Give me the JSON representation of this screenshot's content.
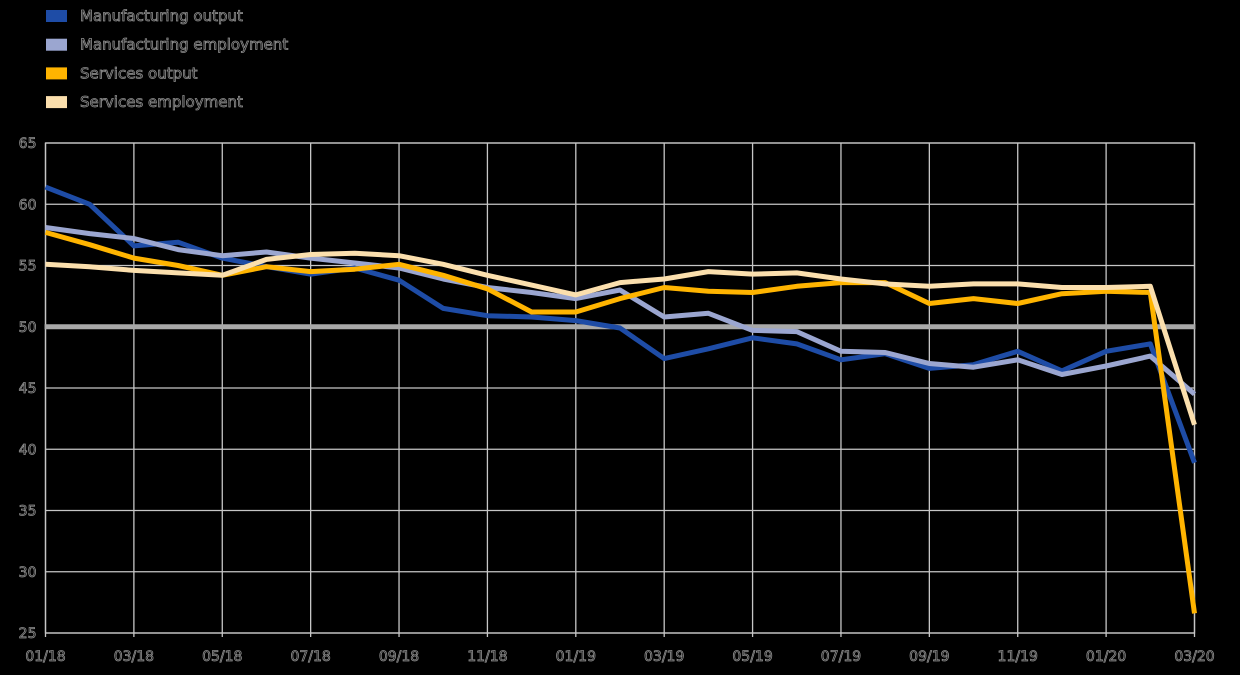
{
  "background_color": "#000000",
  "text_color": "#8f8f8f",
  "grid_color": "#c6c6c6",
  "legend": {
    "position": "top-left",
    "items": [
      {
        "label": "Manufacturing output",
        "color": "#1e4ca6"
      },
      {
        "label": "Manufacturing employment",
        "color": "#9ba6d0"
      },
      {
        "label": "Services output",
        "color": "#ffb400"
      },
      {
        "label": "Services employment",
        "color": "#fbdfad"
      }
    ]
  },
  "chart_data": {
    "type": "line",
    "title": "",
    "xlabel": "",
    "ylabel": "",
    "grid": true,
    "legend_position": "top-left",
    "ylim": [
      25,
      65
    ],
    "yticks": [
      65,
      60,
      55,
      50,
      45,
      40,
      35,
      30,
      25
    ],
    "reference_line": {
      "y": 50,
      "color": "#a9a9a9",
      "width": 5
    },
    "x": [
      "01/18",
      "02/18",
      "03/18",
      "04/18",
      "05/18",
      "06/18",
      "07/18",
      "08/18",
      "09/18",
      "10/18",
      "11/18",
      "12/18",
      "01/19",
      "02/19",
      "03/19",
      "04/19",
      "05/19",
      "06/19",
      "07/19",
      "08/19",
      "09/19",
      "10/19",
      "11/19",
      "12/19",
      "01/20",
      "02/20",
      "03/20"
    ],
    "x_tick_labels": [
      "01/18",
      "03/18",
      "05/18",
      "07/18",
      "09/18",
      "11/18",
      "01/19",
      "03/19",
      "05/19",
      "07/19",
      "09/19",
      "11/19",
      "01/20",
      "03/20"
    ],
    "series": [
      {
        "name": "Manufacturing output",
        "color": "#1e4ca6",
        "values": [
          61.4,
          60.0,
          56.6,
          56.9,
          55.6,
          54.9,
          54.3,
          54.8,
          53.8,
          51.5,
          50.9,
          50.8,
          50.5,
          49.9,
          47.4,
          48.2,
          49.1,
          48.6,
          47.3,
          47.8,
          46.6,
          46.9,
          48.0,
          46.4,
          48.0,
          48.6,
          38.9
        ]
      },
      {
        "name": "Manufacturing employment",
        "color": "#9ba6d0",
        "values": [
          58.1,
          57.6,
          57.2,
          56.3,
          55.8,
          56.1,
          55.6,
          55.2,
          54.8,
          53.9,
          53.2,
          52.8,
          52.3,
          53.0,
          50.8,
          51.1,
          49.7,
          49.6,
          48.0,
          47.9,
          47.0,
          46.7,
          47.3,
          46.1,
          46.8,
          47.6,
          44.5
        ]
      },
      {
        "name": "Services output",
        "color": "#ffb400",
        "values": [
          57.7,
          56.7,
          55.6,
          55.0,
          54.2,
          54.9,
          54.5,
          54.7,
          55.1,
          54.2,
          53.1,
          51.2,
          51.2,
          52.3,
          53.2,
          52.9,
          52.8,
          53.3,
          53.6,
          53.6,
          51.9,
          52.3,
          51.9,
          52.7,
          52.9,
          52.8,
          26.6
        ]
      },
      {
        "name": "Services employment",
        "color": "#fbdfad",
        "values": [
          55.1,
          54.9,
          54.6,
          54.4,
          54.2,
          55.5,
          55.9,
          56.0,
          55.8,
          55.1,
          54.2,
          53.4,
          52.6,
          53.6,
          53.9,
          54.5,
          54.3,
          54.4,
          53.9,
          53.5,
          53.3,
          53.5,
          53.5,
          53.2,
          53.2,
          53.3,
          42.0
        ]
      }
    ]
  }
}
